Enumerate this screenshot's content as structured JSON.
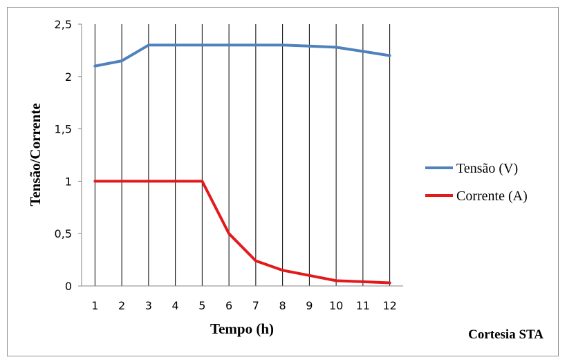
{
  "chart_data": {
    "type": "line",
    "x": [
      1,
      2,
      3,
      4,
      5,
      6,
      7,
      8,
      9,
      10,
      11,
      12
    ],
    "series": [
      {
        "name": "Tensão (V)",
        "color": "#4f81bd",
        "values": [
          2.1,
          2.15,
          2.3,
          2.3,
          2.3,
          2.3,
          2.3,
          2.3,
          2.29,
          2.28,
          2.24,
          2.2
        ]
      },
      {
        "name": "Corrente (A)",
        "color": "#e31a1c",
        "values": [
          1,
          1,
          1,
          1,
          1,
          0.5,
          0.24,
          0.15,
          0.1,
          0.05,
          0.04,
          0.03
        ]
      }
    ],
    "xlabel": "Tempo (h)",
    "ylabel": "Tensão/Corrente",
    "ylim": [
      0,
      2.5
    ],
    "yticks": [
      "0",
      "0,5",
      "1",
      "1,5",
      "2",
      "2,5"
    ],
    "xticks": [
      "1",
      "2",
      "3",
      "4",
      "5",
      "6",
      "7",
      "8",
      "9",
      "10",
      "11",
      "12"
    ],
    "grid": "vertical",
    "legend_position": "right"
  },
  "credit": "Cortesia STA"
}
